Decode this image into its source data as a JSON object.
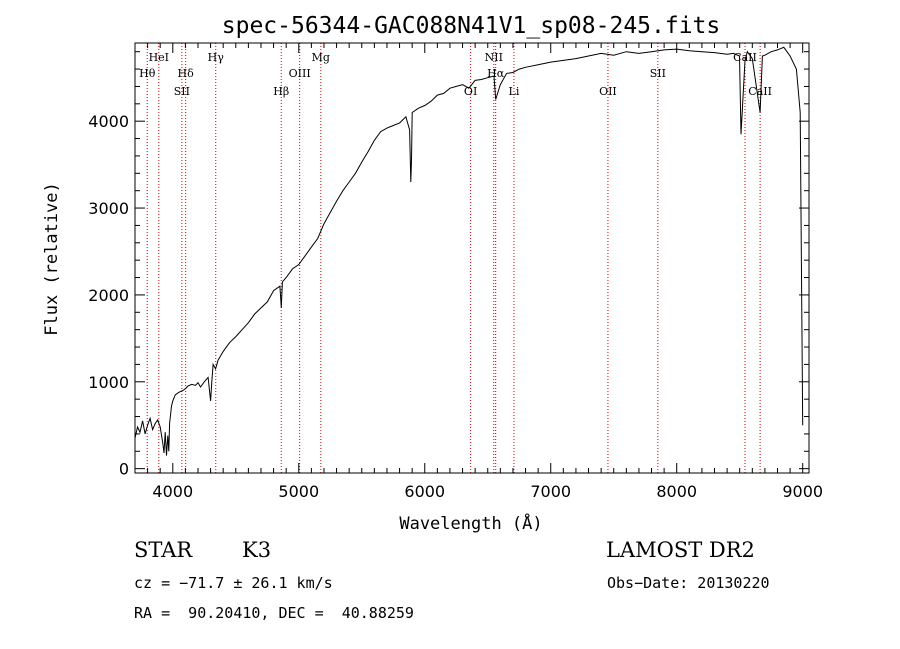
{
  "chart_data": {
    "type": "line",
    "title": "spec-56344-GAC088N41V1_sp08-245.fits",
    "xlabel": "Wavelength (Å)",
    "ylabel": "Flux (relative)",
    "xlim": [
      3700,
      9050
    ],
    "ylim": [
      -50,
      4900
    ],
    "x_ticks": [
      4000,
      5000,
      6000,
      7000,
      8000,
      9000
    ],
    "y_ticks": [
      0,
      1000,
      2000,
      3000,
      4000
    ],
    "grid": false,
    "series": [
      {
        "x": [
          3700,
          3720,
          3740,
          3760,
          3780,
          3800,
          3820,
          3840,
          3860,
          3880,
          3900,
          3920,
          3930,
          3940,
          3950,
          3960,
          3968,
          3975,
          3990,
          4000,
          4020,
          4050,
          4080,
          4100,
          4120,
          4150,
          4180,
          4200,
          4220,
          4250,
          4280,
          4300,
          4310,
          4320,
          4340,
          4360,
          4380,
          4400,
          4450,
          4500,
          4550,
          4600,
          4650,
          4700,
          4750,
          4800,
          4850,
          4861,
          4870,
          4900,
          4950,
          5000,
          5050,
          5100,
          5150,
          5200,
          5250,
          5300,
          5350,
          5400,
          5450,
          5500,
          5550,
          5600,
          5650,
          5700,
          5750,
          5800,
          5850,
          5880,
          5889,
          5895,
          5900,
          5950,
          6000,
          6050,
          6100,
          6150,
          6200,
          6250,
          6300,
          6350,
          6400,
          6450,
          6500,
          6550,
          6563,
          6600,
          6650,
          6700,
          6750,
          6800,
          6900,
          7000,
          7100,
          7200,
          7300,
          7400,
          7500,
          7600,
          7700,
          7800,
          7900,
          8000,
          8100,
          8200,
          8300,
          8400,
          8450,
          8498,
          8510,
          8542,
          8560,
          8600,
          8662,
          8680,
          8700,
          8750,
          8800,
          8850,
          8900,
          8950,
          8980,
          9000
        ],
        "values": [
          350,
          480,
          420,
          550,
          400,
          500,
          580,
          450,
          520,
          560,
          480,
          300,
          180,
          420,
          150,
          380,
          200,
          520,
          720,
          780,
          850,
          880,
          900,
          920,
          950,
          970,
          960,
          990,
          940,
          1000,
          1050,
          780,
          1000,
          1200,
          1150,
          1250,
          1300,
          1350,
          1450,
          1520,
          1600,
          1680,
          1780,
          1850,
          1920,
          2050,
          2100,
          1850,
          2150,
          2200,
          2300,
          2350,
          2450,
          2550,
          2650,
          2820,
          2950,
          3080,
          3200,
          3300,
          3400,
          3530,
          3650,
          3780,
          3880,
          3920,
          3950,
          3980,
          4050,
          3900,
          3300,
          3550,
          4100,
          4150,
          4180,
          4230,
          4300,
          4320,
          4380,
          4400,
          4420,
          4380,
          4470,
          4480,
          4500,
          4520,
          4250,
          4420,
          4550,
          4560,
          4600,
          4620,
          4650,
          4680,
          4700,
          4720,
          4750,
          4780,
          4760,
          4800,
          4780,
          4800,
          4820,
          4830,
          4810,
          4800,
          4790,
          4770,
          4780,
          4750,
          3850,
          4700,
          4800,
          4720,
          4100,
          4750,
          4760,
          4800,
          4820,
          4850,
          4750,
          4600,
          4100,
          500
        ]
      }
    ],
    "lines": [
      {
        "w": 3797,
        "label": "Hθ",
        "row": 2
      },
      {
        "w": 3889,
        "label": "HeI",
        "row": 1
      },
      {
        "w": 4072,
        "label": "SII",
        "row": 3
      },
      {
        "w": 4102,
        "label": "Hδ",
        "row": 2
      },
      {
        "w": 4341,
        "label": "Hγ",
        "row": 1
      },
      {
        "w": 4861,
        "label": "Hβ",
        "row": 3
      },
      {
        "w": 5007,
        "label": "OIII",
        "row": 2
      },
      {
        "w": 5175,
        "label": "Mg",
        "row": 1
      },
      {
        "w": 6364,
        "label": "OI",
        "row": 3
      },
      {
        "w": 6548,
        "label": "NII",
        "row": 1
      },
      {
        "w": 6563,
        "label": "Hα",
        "row": 2
      },
      {
        "w": 6708,
        "label": "Li",
        "row": 3
      },
      {
        "w": 7454,
        "label": "OII",
        "row": 3
      },
      {
        "w": 7850,
        "label": "SII",
        "row": 2
      },
      {
        "w": 8542,
        "label": "CaII",
        "row": 1
      },
      {
        "w": 8662,
        "label": "CaII",
        "row": 3
      }
    ]
  },
  "info": {
    "object_class": "STAR",
    "subclass": "K3",
    "survey": "LAMOST DR2",
    "cz": "cz = −71.7 ± 26.1 km/s",
    "obs_date": "Obs−Date: 20130220",
    "coords": "RA =  90.20410, DEC =  40.88259"
  }
}
